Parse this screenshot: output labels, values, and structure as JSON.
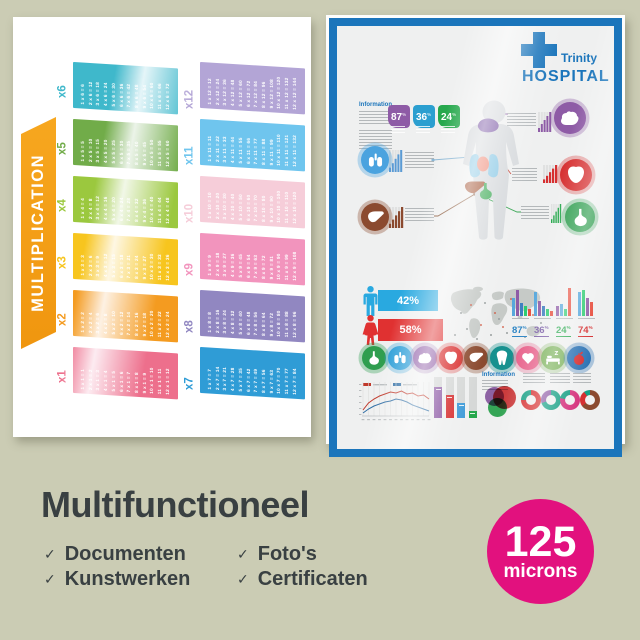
{
  "background_color": "#cbccb4",
  "left_poster": {
    "title": "MULTIPLICATION",
    "ribbon_color": "#f7a71f",
    "tables": [
      {
        "label": "x6",
        "color": "#3fb8cb",
        "lines": [
          "1 x 6 = 6",
          "2 x 6 = 12",
          "3 x 6 = 18",
          "4 x 6 = 24",
          "5 x 6 = 30",
          "6 x 6 = 36",
          "7 x 6 = 42",
          "8 x 6 = 48",
          "9 x 6 = 54",
          "10 x 6 = 60",
          "11 x 6 = 66",
          "12 x 6 = 72"
        ]
      },
      {
        "label": "x12",
        "color": "#b3a5d6",
        "lines": [
          "1 x 12 = 12",
          "2 x 12 = 24",
          "3 x 12 = 36",
          "4 x 12 = 48",
          "5 x 12 = 60",
          "6 x 12 = 72",
          "7 x 12 = 84",
          "8 x 12 = 96",
          "9 x 12 = 108",
          "10 x 12 = 120",
          "11 x 12 = 132",
          "12 x 12 = 144"
        ]
      },
      {
        "label": "x5",
        "color": "#71ac49",
        "lines": [
          "1 x 5 = 5",
          "2 x 5 = 10",
          "3 x 5 = 15",
          "4 x 5 = 20",
          "5 x 5 = 25",
          "6 x 5 = 30",
          "7 x 5 = 35",
          "8 x 5 = 40",
          "9 x 5 = 45",
          "10 x 5 = 50",
          "11 x 5 = 55",
          "12 x 5 = 60"
        ]
      },
      {
        "label": "x11",
        "color": "#6fc5ee",
        "lines": [
          "1 x 11 = 11",
          "2 x 11 = 22",
          "3 x 11 = 33",
          "4 x 11 = 44",
          "5 x 11 = 55",
          "6 x 11 = 66",
          "7 x 11 = 77",
          "8 x 11 = 88",
          "9 x 11 = 99",
          "10 x 11 = 110",
          "11 x 11 = 121",
          "12 x 11 = 132"
        ]
      },
      {
        "label": "x4",
        "color": "#9bc83e",
        "lines": [
          "1 x 4 = 4",
          "2 x 4 = 8",
          "3 x 4 = 12",
          "4 x 4 = 16",
          "5 x 4 = 20",
          "6 x 4 = 24",
          "7 x 4 = 28",
          "8 x 4 = 32",
          "9 x 4 = 36",
          "10 x 4 = 40",
          "11 x 4 = 44",
          "12 x 4 = 48"
        ]
      },
      {
        "label": "x10",
        "color": "#f6cdd9",
        "lines": [
          "1 x 10 = 10",
          "2 x 10 = 20",
          "3 x 10 = 30",
          "4 x 10 = 40",
          "5 x 10 = 50",
          "6 x 10 = 60",
          "7 x 10 = 70",
          "8 x 10 = 80",
          "9 x 10 = 90",
          "10 x 10 = 100",
          "11 x 10 = 110",
          "12 x 10 = 120"
        ]
      },
      {
        "label": "x3",
        "color": "#f7c51e",
        "lines": [
          "1 x 3 = 3",
          "2 x 3 = 6",
          "3 x 3 = 9",
          "4 x 3 = 12",
          "5 x 3 = 15",
          "6 x 3 = 18",
          "7 x 3 = 21",
          "8 x 3 = 24",
          "9 x 3 = 27",
          "10 x 3 = 30",
          "11 x 3 = 33",
          "12 x 3 = 36"
        ]
      },
      {
        "label": "x9",
        "color": "#f294bd",
        "lines": [
          "1 x 9 = 9",
          "2 x 9 = 18",
          "3 x 9 = 27",
          "4 x 9 = 36",
          "5 x 9 = 45",
          "6 x 9 = 54",
          "7 x 9 = 63",
          "8 x 9 = 72",
          "9 x 9 = 81",
          "10 x 9 = 90",
          "11 x 9 = 99",
          "12 x 9 = 108"
        ]
      },
      {
        "label": "x2",
        "color": "#f49b20",
        "lines": [
          "1 x 2 = 2",
          "2 x 2 = 4",
          "3 x 2 = 6",
          "4 x 2 = 8",
          "5 x 2 = 10",
          "6 x 2 = 12",
          "7 x 2 = 14",
          "8 x 2 = 16",
          "9 x 2 = 18",
          "10 x 2 = 20",
          "11 x 2 = 22",
          "12 x 2 = 24"
        ]
      },
      {
        "label": "x8",
        "color": "#9187c1",
        "lines": [
          "1 x 8 = 8",
          "2 x 8 = 16",
          "3 x 8 = 24",
          "4 x 8 = 32",
          "5 x 8 = 40",
          "6 x 8 = 48",
          "7 x 8 = 56",
          "8 x 8 = 64",
          "9 x 8 = 72",
          "10 x 8 = 80",
          "11 x 8 = 88",
          "12 x 8 = 96"
        ]
      },
      {
        "label": "x1",
        "color": "#ed6f8c",
        "lines": [
          "1 x 1 = 1",
          "2 x 1 = 2",
          "3 x 1 = 3",
          "4 x 1 = 4",
          "5 x 1 = 5",
          "6 x 1 = 6",
          "7 x 1 = 7",
          "8 x 1 = 8",
          "9 x 1 = 9",
          "10 x 1 = 10",
          "11 x 1 = 11",
          "12 x 1 = 12"
        ]
      },
      {
        "label": "x7",
        "color": "#2f9cd6",
        "lines": [
          "1 x 7 = 7",
          "2 x 7 = 14",
          "3 x 7 = 21",
          "4 x 7 = 28",
          "5 x 7 = 35",
          "6 x 7 = 42",
          "7 x 7 = 49",
          "8 x 7 = 56",
          "9 x 7 = 63",
          "10 x 7 = 70",
          "11 x 7 = 77",
          "12 x 7 = 84"
        ]
      }
    ]
  },
  "right_poster": {
    "accent": "#1b75bb",
    "brand_name": "Trinity",
    "brand_type": "HOSPITAL",
    "info_label": "Information",
    "info_label2": "Information",
    "badges": [
      {
        "value": "87",
        "unit": "%",
        "color": "#8e5ba6"
      },
      {
        "value": "36",
        "unit": "%",
        "color": "#2b9fd0"
      },
      {
        "value": "24",
        "unit": "%",
        "color": "#27a84d"
      }
    ],
    "organ_callouts": [
      {
        "name": "lungs",
        "color": "#4aa3df"
      },
      {
        "name": "brain",
        "color": "#8e5ba6"
      },
      {
        "name": "heart-organ",
        "color": "#d63031"
      },
      {
        "name": "liver",
        "color": "#8b4a2f"
      },
      {
        "name": "stomach",
        "color": "#2f9e4f"
      }
    ],
    "gender": {
      "male_value": "42%",
      "male_color": "#29a9e0",
      "female_value": "58%",
      "female_color": "#e03131"
    },
    "stat_groups": [
      {
        "value": "87",
        "unit": "%",
        "color": "#2e86c5",
        "bars": [
          [
            "#56a7dc",
            18
          ],
          [
            "#8e5ba6",
            26
          ],
          [
            "#3f7fc1",
            13
          ],
          [
            "#2ecc71",
            10
          ],
          [
            "#e74c3c",
            7
          ]
        ]
      },
      {
        "value": "36",
        "unit": "%",
        "color": "#7c5fa8",
        "bars": [
          [
            "#56a7dc",
            24
          ],
          [
            "#8e5ba6",
            15
          ],
          [
            "#3f7fc1",
            10
          ],
          [
            "#2ecc71",
            7
          ],
          [
            "#e74c3c",
            5
          ]
        ]
      },
      {
        "value": "24",
        "unit": "%",
        "color": "#27a84d",
        "bars": [
          [
            "#8e5ba6",
            10
          ],
          [
            "#56a7dc",
            12
          ],
          [
            "#2ecc71",
            7
          ],
          [
            "#e74c3c",
            28
          ]
        ]
      },
      {
        "value": "74",
        "unit": "%",
        "color": "#d63031",
        "bars": [
          [
            "#56a7dc",
            24
          ],
          [
            "#2ecc71",
            26
          ],
          [
            "#8e5ba6",
            18
          ],
          [
            "#e74c3c",
            14
          ]
        ]
      }
    ],
    "icon_row": [
      {
        "name": "stomach",
        "color": "#2f9e4f"
      },
      {
        "name": "lungs",
        "color": "#2d9fd8"
      },
      {
        "name": "brain",
        "color": "#8e5ba6"
      },
      {
        "name": "heart-organ",
        "color": "#d92b2b"
      },
      {
        "name": "liver",
        "color": "#8b4a2f"
      },
      {
        "name": "tooth",
        "color": "#16918f"
      },
      {
        "name": "heart",
        "color": "#e8638c"
      },
      {
        "name": "sleep",
        "color": "#7bb25a",
        "glyph_letter": "Z"
      },
      {
        "name": "apple",
        "color": "#2e74b5",
        "glyph_color": "#d63031"
      }
    ],
    "donuts": [
      {
        "segments": [
          [
            "#d63031",
            75
          ],
          [
            "#16a085",
            25
          ]
        ]
      },
      {
        "segments": [
          [
            "#16a085",
            70
          ],
          [
            "#8e5ba6",
            30
          ]
        ]
      },
      {
        "segments": [
          [
            "#d6357f",
            78
          ],
          [
            "#16a085",
            22
          ]
        ]
      },
      {
        "segments": [
          [
            "#8b4a2f",
            65
          ],
          [
            "#d63031",
            25
          ],
          [
            "#16a085",
            10
          ]
        ]
      }
    ]
  },
  "footer": {
    "title": "Multifunctioneel",
    "check_glyph": "✓",
    "items": [
      "Documenten",
      "Kunstwerken",
      "Foto's",
      "Certificaten"
    ],
    "badge_value": "125",
    "badge_unit": "microns",
    "badge_color": "#e2117e",
    "text_color": "#394042"
  }
}
